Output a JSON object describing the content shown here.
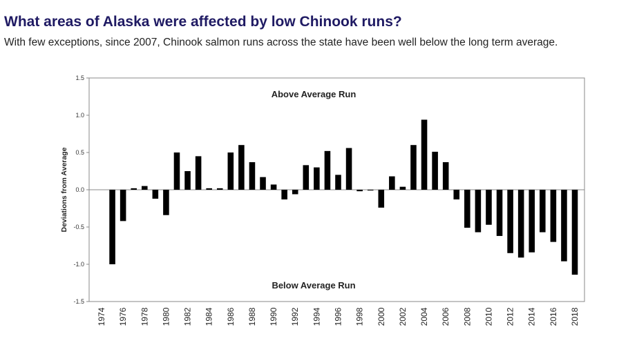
{
  "header": {
    "title": "What areas of Alaska were affected by low Chinook runs?",
    "subtitle": "With few exceptions, since 2007, Chinook salmon runs across the state have been well below the long term average."
  },
  "colors": {
    "title": "#1f1a63",
    "bars": "#000000"
  },
  "chart_data": {
    "type": "bar",
    "ylabel": "Deviations from Average",
    "ylim": [
      -1.5,
      1.5
    ],
    "yticks": [
      "1.5",
      "1.0",
      "0.5",
      "0.0",
      "-0.5",
      "-1.0",
      "-1.5"
    ],
    "ytick_values": [
      1.5,
      1.0,
      0.5,
      0.0,
      -0.5,
      -1.0,
      -1.5
    ],
    "xtick_labels": [
      "1974",
      "1976",
      "1978",
      "1980",
      "1982",
      "1984",
      "1986",
      "1988",
      "1990",
      "1992",
      "1994",
      "1996",
      "1998",
      "2000",
      "2002",
      "2004",
      "2006",
      "2008",
      "2010",
      "2012",
      "2014",
      "2016",
      "2018"
    ],
    "xtick_years": [
      1974,
      1976,
      1978,
      1980,
      1982,
      1984,
      1986,
      1988,
      1990,
      1992,
      1994,
      1996,
      1998,
      2000,
      2002,
      2004,
      2006,
      2008,
      2010,
      2012,
      2014,
      2016,
      2018
    ],
    "annotations": {
      "above": "Above Average Run",
      "below": "Below Average Run"
    },
    "grid": false,
    "years": [
      1975,
      1976,
      1977,
      1978,
      1979,
      1980,
      1981,
      1982,
      1983,
      1984,
      1985,
      1986,
      1987,
      1988,
      1989,
      1990,
      1991,
      1992,
      1993,
      1994,
      1995,
      1996,
      1997,
      1998,
      1999,
      2000,
      2001,
      2002,
      2003,
      2004,
      2005,
      2006,
      2007,
      2008,
      2009,
      2010,
      2011,
      2012,
      2013,
      2014,
      2015,
      2016,
      2017,
      2018
    ],
    "values": [
      -1.0,
      -0.42,
      0.02,
      0.05,
      -0.12,
      -0.34,
      0.5,
      0.25,
      0.45,
      0.02,
      0.02,
      0.5,
      0.6,
      0.37,
      0.17,
      0.07,
      -0.13,
      -0.06,
      0.33,
      0.3,
      0.52,
      0.2,
      0.56,
      -0.02,
      -0.01,
      -0.24,
      0.18,
      0.04,
      0.6,
      0.94,
      0.51,
      0.37,
      -0.13,
      -0.51,
      -0.57,
      -0.47,
      -0.62,
      -0.85,
      -0.91,
      -0.84,
      -0.57,
      -0.7,
      -0.96,
      -1.14
    ]
  }
}
